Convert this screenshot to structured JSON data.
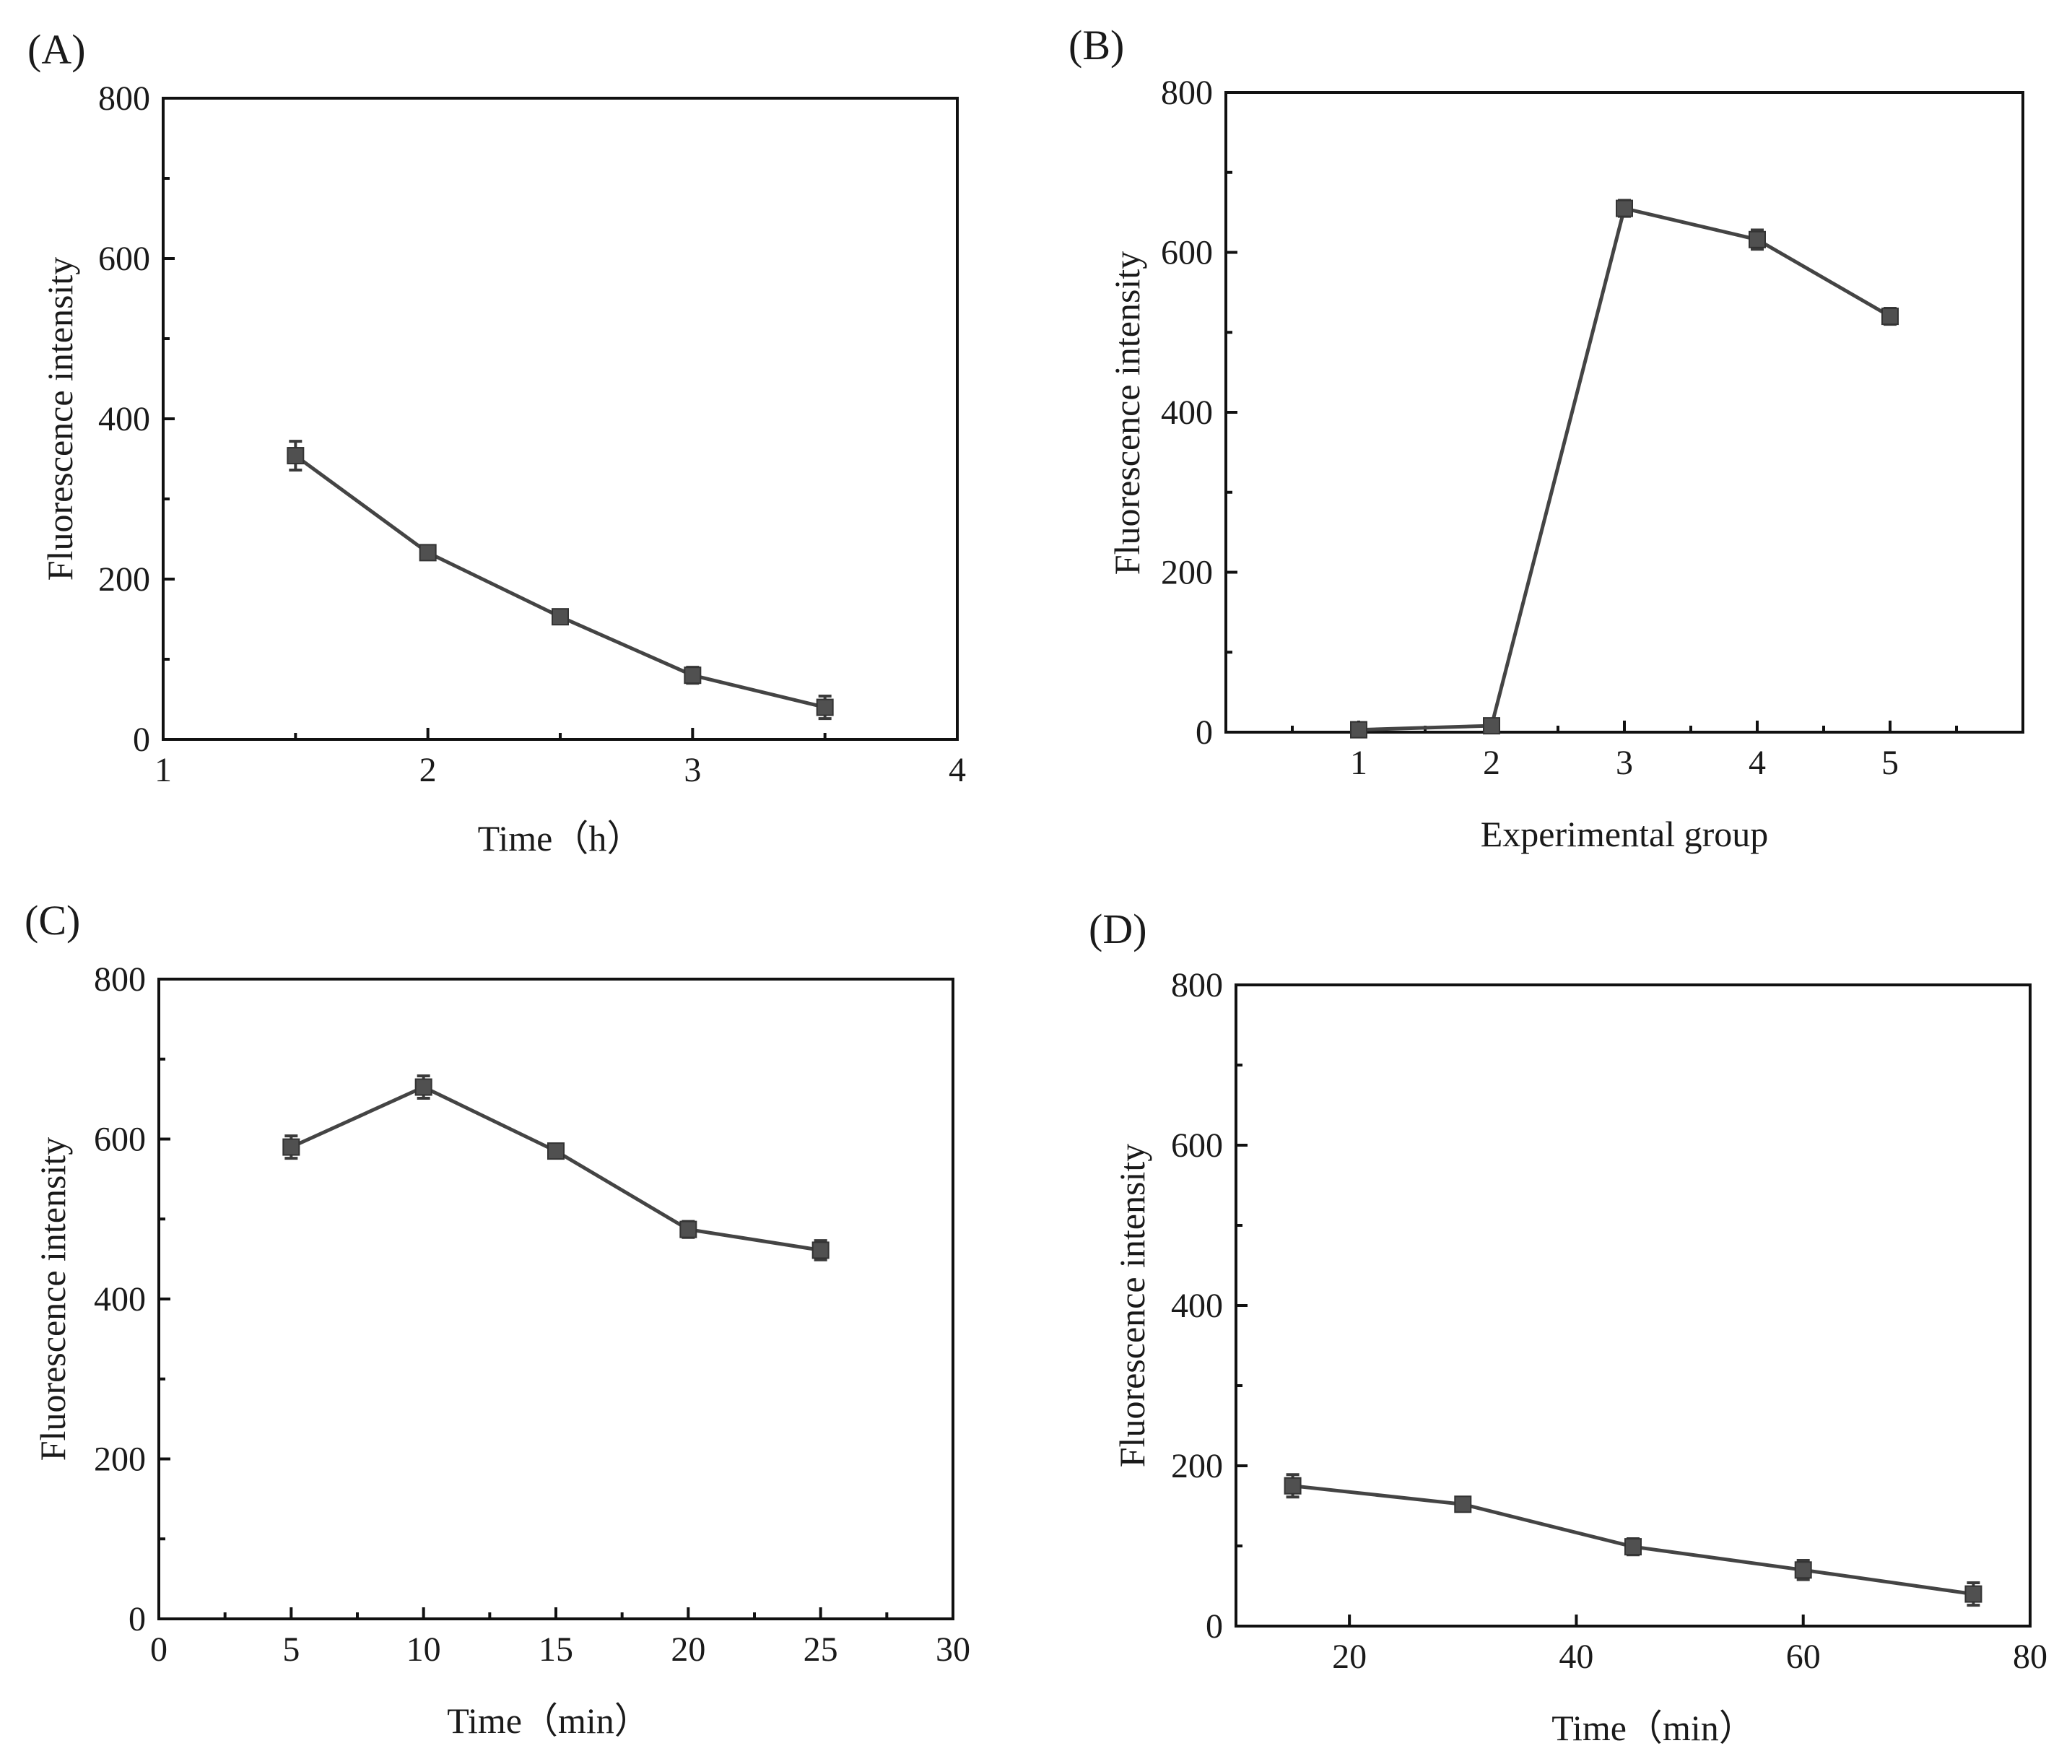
{
  "figure": {
    "colors": {
      "axis": "#111111",
      "line": "#444444",
      "marker": "#505050"
    }
  },
  "chart_data": [
    {
      "id": "A",
      "panel_label": "(A)",
      "type": "line",
      "xlabel": "Time（h）",
      "ylabel": "Fluorescence intensity",
      "xlim": [
        1,
        4
      ],
      "ylim": [
        0,
        800
      ],
      "xticks": [
        1,
        2,
        3,
        4
      ],
      "xtick_labels": [
        "1",
        "2",
        "3",
        "4"
      ],
      "yticks": [
        0,
        200,
        400,
        600,
        800
      ],
      "ytick_labels": [
        "0",
        "200",
        "400",
        "600",
        "800"
      ],
      "grid": false,
      "series": [
        {
          "name": "Fluorescence intensity",
          "marker": "square",
          "x": [
            1.5,
            2,
            2.5,
            3,
            3.5
          ],
          "y": [
            354,
            233,
            153,
            80,
            40
          ],
          "err": [
            18,
            8,
            8,
            10,
            14
          ]
        }
      ]
    },
    {
      "id": "B",
      "panel_label": "(B)",
      "type": "line",
      "xlabel": "Experimental group",
      "ylabel": "Fluorescence intensity",
      "xlim": [
        0,
        6
      ],
      "ylim": [
        0,
        800
      ],
      "xticks": [
        1,
        2,
        3,
        4,
        5
      ],
      "xtick_labels": [
        "1",
        "2",
        "3",
        "4",
        "5"
      ],
      "yticks": [
        0,
        200,
        400,
        600,
        800
      ],
      "ytick_labels": [
        "0",
        "200",
        "400",
        "600",
        "800"
      ],
      "grid": false,
      "series": [
        {
          "name": "Fluorescence intensity",
          "marker": "square",
          "x": [
            1,
            2,
            3,
            4,
            5
          ],
          "y": [
            3,
            8,
            655,
            616,
            520
          ],
          "err": [
            5,
            6,
            10,
            12,
            10
          ]
        }
      ]
    },
    {
      "id": "C",
      "panel_label": "(C)",
      "type": "line",
      "xlabel": "Time（min）",
      "ylabel": "Fluorescence intensity",
      "xlim": [
        0,
        30
      ],
      "ylim": [
        0,
        800
      ],
      "xticks": [
        0,
        5,
        10,
        15,
        20,
        25,
        30
      ],
      "xtick_labels": [
        "0",
        "5",
        "10",
        "15",
        "20",
        "25",
        "30"
      ],
      "yticks": [
        0,
        200,
        400,
        600,
        800
      ],
      "ytick_labels": [
        "0",
        "200",
        "400",
        "600",
        "800"
      ],
      "grid": false,
      "series": [
        {
          "name": "Fluorescence intensity",
          "marker": "square",
          "x": [
            5,
            10,
            15,
            20,
            25
          ],
          "y": [
            590,
            665,
            585,
            487,
            461
          ],
          "err": [
            14,
            14,
            8,
            10,
            12
          ]
        }
      ]
    },
    {
      "id": "D",
      "panel_label": "(D)",
      "type": "line",
      "xlabel": "Time（min）",
      "ylabel": "Fluorescence intensity",
      "xlim": [
        10,
        80
      ],
      "ylim": [
        0,
        800
      ],
      "xticks": [
        20,
        40,
        60,
        80
      ],
      "xtick_labels": [
        "20",
        "40",
        "60",
        "80"
      ],
      "yticks": [
        0,
        200,
        400,
        600,
        800
      ],
      "ytick_labels": [
        "0",
        "200",
        "400",
        "600",
        "800"
      ],
      "grid": false,
      "series": [
        {
          "name": "Fluorescence intensity",
          "marker": "square",
          "x": [
            15,
            30,
            45,
            60,
            75
          ],
          "y": [
            175,
            152,
            99,
            70,
            40
          ],
          "err": [
            14,
            8,
            10,
            12,
            14
          ]
        }
      ]
    }
  ]
}
